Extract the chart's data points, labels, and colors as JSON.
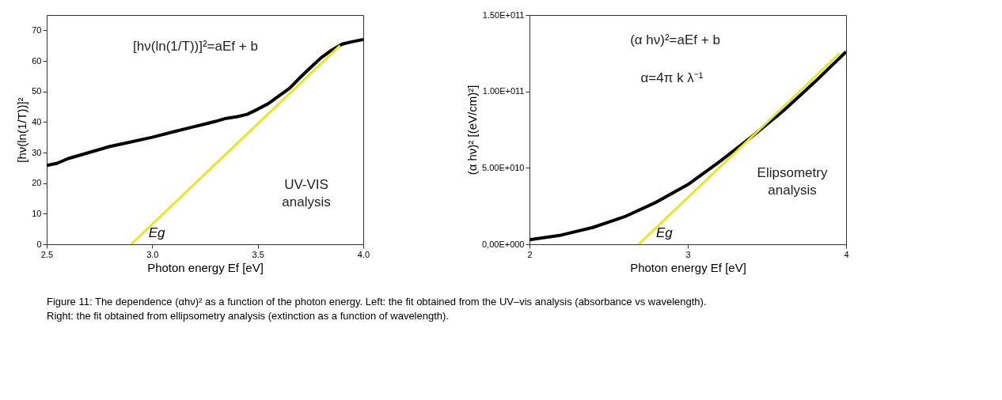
{
  "chart_data": [
    {
      "type": "line",
      "xlabel": "Photon energy Ef [eV]",
      "ylabel": "[hν(ln(1/T))]²",
      "xlim": [
        2.5,
        4.0
      ],
      "xticks": [
        2.5,
        {
          "value": 3.0,
          "label": "3.0"
        },
        3.5,
        {
          "value": 4.0,
          "label": "4.0"
        }
      ],
      "ylim": [
        0,
        75
      ],
      "yticks": [
        0,
        10,
        20,
        30,
        40,
        50,
        60,
        70
      ],
      "grid": false,
      "marker": "none",
      "line_style": "solid",
      "series": [
        {
          "color": "#000000",
          "x": [
            2.5,
            2.55,
            2.6,
            2.7,
            2.8,
            2.9,
            3.0,
            3.1,
            3.2,
            3.3,
            3.35,
            3.4,
            3.45,
            3.5,
            3.55,
            3.6,
            3.65,
            3.7,
            3.75,
            3.8,
            3.85,
            3.9,
            3.95,
            4.0
          ],
          "values": [
            25.8,
            26.5,
            28,
            30,
            32,
            33.5,
            35,
            36.8,
            38.5,
            40.2,
            41.2,
            41.7,
            42.5,
            44.2,
            46,
            48.5,
            51,
            54.5,
            57.8,
            61,
            63.5,
            65.5,
            66.3,
            67
          ]
        },
        {
          "type": "line",
          "color": "#e6e62e",
          "x": [
            2.9,
            3.89
          ],
          "values": [
            0,
            65
          ]
        }
      ],
      "annotations": [
        "[hν(ln(1/T))]²=aEf + b",
        "UV-VIS",
        "analysis",
        {
          "text": "Eg",
          "x": 2.9,
          "y": 0
        }
      ]
    },
    {
      "type": "line",
      "xlabel": "Photon energy Ef [eV]",
      "ylabel": "(α hν)²  [(eV/cm)²]",
      "xlim": [
        2,
        4
      ],
      "xticks": [
        2,
        3,
        4
      ],
      "tick_labels": true,
      "ylim": [
        0,
        150000000000
      ],
      "yticks": [
        {
          "value": 0,
          "label": "0,00E+000"
        },
        {
          "value": 50000000000,
          "label": "5.00E+010"
        },
        {
          "value": 100000000000,
          "label": "1.00E+011"
        },
        {
          "value": 150000000000,
          "label": "1.50E+011"
        }
      ],
      "grid": false,
      "marker": "none",
      "line_style": "solid",
      "series": [
        {
          "color": "#000000",
          "x": [
            2.0,
            2.2,
            2.4,
            2.6,
            2.8,
            3.0,
            3.2,
            3.4,
            3.6,
            3.8,
            4.0
          ],
          "values": [
            3000000000,
            6000000000,
            11000000000,
            18000000000,
            27500000000,
            39000000000,
            54000000000,
            70000000000,
            87000000000,
            106000000000,
            126000000000
          ]
        },
        {
          "type": "line",
          "color": "#e6e62e",
          "x": [
            2.69,
            3.96
          ],
          "values": [
            0,
            125000000000
          ]
        }
      ],
      "annotations": [
        "(α hν)²=aEf + b",
        "α=4π k λ⁻¹",
        "Elipsometry",
        "analysis",
        {
          "text": "Eg",
          "x": 2.69,
          "y": 0
        },
        "Figure 11: The dependence (αhν)² as a function of the photon energy. Left: the fit obtained from the UV–vis analysis (absorbance vs wavelength).",
        "Right: the fit obtained from ellipsometry analysis (extinction as a function of wavelength)."
      ]
    }
  ]
}
